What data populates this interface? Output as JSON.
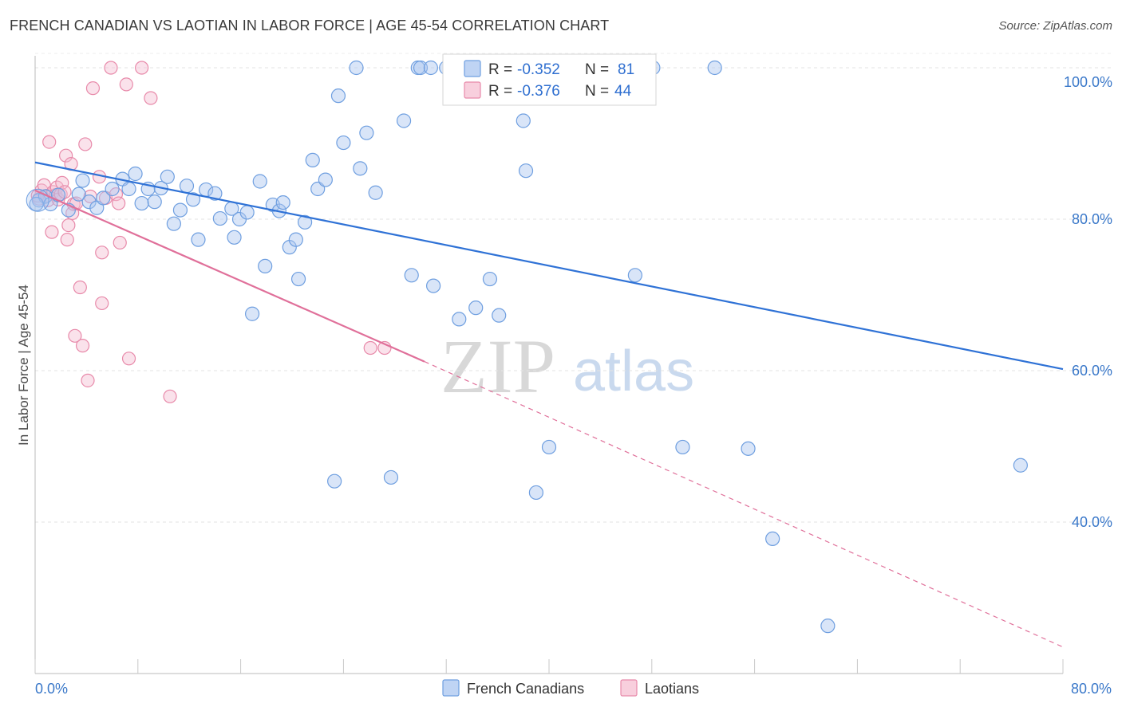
{
  "header": {
    "title": "FRENCH CANADIAN VS LAOTIAN IN LABOR FORCE | AGE 45-54 CORRELATION CHART",
    "source": "Source: ZipAtlas.com"
  },
  "watermark": {
    "zip": "ZIP",
    "atlas": "atlas"
  },
  "legend": {
    "r_label": "R =",
    "n_label": "N =",
    "rows": [
      {
        "r": "-0.352",
        "n": "81"
      },
      {
        "r": "-0.376",
        "n": "44"
      }
    ]
  },
  "chart_data": {
    "type": "scatter",
    "title": "FRENCH CANADIAN VS LAOTIAN IN LABOR FORCE | AGE 45-54 CORRELATION CHART",
    "xlabel": "",
    "ylabel": "In Labor Force | Age 45-54",
    "xlim": [
      0,
      80
    ],
    "ylim": [
      20,
      102
    ],
    "x_tick_labels": [
      "0.0%",
      "80.0%"
    ],
    "y_ticks": [
      40,
      60,
      80,
      100
    ],
    "y_tick_labels": [
      "40.0%",
      "60.0%",
      "80.0%",
      "100.0%"
    ],
    "grid": true,
    "legend_position": "bottom",
    "colors": {
      "blue": "#6f9fe0",
      "blue_fill": "#aac6f0",
      "blue_line": "#2f72d6",
      "pink": "#e88aaa",
      "pink_fill": "#f5bfd2",
      "pink_line": "#e0709a"
    },
    "series": [
      {
        "name": "French Canadians",
        "color": "blue",
        "r": -0.352,
        "n": 81,
        "trend": {
          "x": [
            0,
            80
          ],
          "y": [
            87.5,
            60.2
          ]
        },
        "points": [
          [
            0.3,
            82.5
          ],
          [
            0.8,
            83
          ],
          [
            1.2,
            82
          ],
          [
            1.8,
            83.2
          ],
          [
            2.6,
            81.2
          ],
          [
            3.4,
            83.3
          ],
          [
            3.7,
            85.1
          ],
          [
            4.2,
            82.3
          ],
          [
            4.8,
            81.5
          ],
          [
            5.3,
            82.8
          ],
          [
            6.0,
            84
          ],
          [
            6.8,
            85.3
          ],
          [
            7.3,
            84
          ],
          [
            7.8,
            86
          ],
          [
            8.3,
            82.1
          ],
          [
            8.8,
            84
          ],
          [
            9.3,
            82.3
          ],
          [
            9.8,
            84.1
          ],
          [
            10.3,
            85.6
          ],
          [
            10.8,
            79.4
          ],
          [
            11.3,
            81.2
          ],
          [
            11.8,
            84.4
          ],
          [
            12.3,
            82.6
          ],
          [
            12.7,
            77.3
          ],
          [
            13.3,
            83.9
          ],
          [
            14.0,
            83.4
          ],
          [
            14.4,
            80.1
          ],
          [
            15.3,
            81.4
          ],
          [
            15.5,
            77.6
          ],
          [
            15.9,
            80
          ],
          [
            16.5,
            80.9
          ],
          [
            16.9,
            67.5
          ],
          [
            17.5,
            85
          ],
          [
            17.9,
            73.8
          ],
          [
            18.5,
            81.9
          ],
          [
            19.0,
            81.1
          ],
          [
            19.3,
            82.2
          ],
          [
            19.8,
            76.3
          ],
          [
            20.3,
            77.3
          ],
          [
            20.5,
            72.1
          ],
          [
            21.0,
            79.6
          ],
          [
            21.6,
            87.8
          ],
          [
            22.0,
            84
          ],
          [
            22.6,
            85.2
          ],
          [
            23.3,
            45.4
          ],
          [
            23.6,
            96.3
          ],
          [
            24.0,
            90.1
          ],
          [
            25.0,
            100
          ],
          [
            25.3,
            86.7
          ],
          [
            25.8,
            91.4
          ],
          [
            26.5,
            83.5
          ],
          [
            27.7,
            45.9
          ],
          [
            28.7,
            93
          ],
          [
            29.3,
            72.6
          ],
          [
            29.8,
            100
          ],
          [
            30.0,
            100
          ],
          [
            30.8,
            100
          ],
          [
            31.0,
            71.2
          ],
          [
            32.0,
            100
          ],
          [
            32.5,
            100
          ],
          [
            33.0,
            66.8
          ],
          [
            33.6,
            100
          ],
          [
            34.3,
            68.3
          ],
          [
            35.2,
            100
          ],
          [
            35.4,
            72.1
          ],
          [
            36.1,
            67.3
          ],
          [
            37.1,
            100
          ],
          [
            38.0,
            93
          ],
          [
            38.2,
            86.4
          ],
          [
            39.0,
            43.9
          ],
          [
            40.0,
            49.9
          ],
          [
            44.8,
            100
          ],
          [
            46.7,
            72.6
          ],
          [
            48.1,
            100
          ],
          [
            50.4,
            49.9
          ],
          [
            52.9,
            100
          ],
          [
            55.5,
            49.7
          ],
          [
            57.4,
            37.8
          ],
          [
            61.7,
            26.3
          ],
          [
            76.7,
            47.5
          ],
          [
            0.1,
            82.0
          ]
        ]
      },
      {
        "name": "Laotians",
        "color": "pink",
        "r": -0.376,
        "n": 44,
        "trend": {
          "x": [
            0,
            30.3
          ],
          "y": [
            83.8,
            61.2
          ]
        },
        "trend_dashed": {
          "x": [
            30.3,
            80
          ],
          "y": [
            61.2,
            23.5
          ]
        },
        "points": [
          [
            0.3,
            82.7
          ],
          [
            0.5,
            83.8
          ],
          [
            0.7,
            84.5
          ],
          [
            0.9,
            83.1
          ],
          [
            1.0,
            82.5
          ],
          [
            1.1,
            90.2
          ],
          [
            1.3,
            78.3
          ],
          [
            1.4,
            83.6
          ],
          [
            1.6,
            83.2
          ],
          [
            1.7,
            84.2
          ],
          [
            1.8,
            82.6
          ],
          [
            2.0,
            83.3
          ],
          [
            2.1,
            84.8
          ],
          [
            2.3,
            83.6
          ],
          [
            2.4,
            88.4
          ],
          [
            2.5,
            77.3
          ],
          [
            2.6,
            79.2
          ],
          [
            2.8,
            87.3
          ],
          [
            2.9,
            80.8
          ],
          [
            3.0,
            82
          ],
          [
            3.1,
            64.6
          ],
          [
            3.2,
            82.1
          ],
          [
            3.5,
            71
          ],
          [
            3.7,
            63.3
          ],
          [
            3.9,
            89.9
          ],
          [
            4.1,
            58.7
          ],
          [
            4.3,
            83
          ],
          [
            4.5,
            97.3
          ],
          [
            5.0,
            85.6
          ],
          [
            5.2,
            75.6
          ],
          [
            5.2,
            68.9
          ],
          [
            5.5,
            82.8
          ],
          [
            5.9,
            100
          ],
          [
            6.3,
            83.3
          ],
          [
            6.5,
            82.1
          ],
          [
            6.6,
            76.9
          ],
          [
            7.1,
            97.8
          ],
          [
            7.3,
            61.6
          ],
          [
            8.3,
            100
          ],
          [
            9.0,
            96
          ],
          [
            10.5,
            56.6
          ],
          [
            26.1,
            63
          ],
          [
            27.2,
            63
          ],
          [
            0.2,
            83.1
          ]
        ]
      }
    ]
  }
}
